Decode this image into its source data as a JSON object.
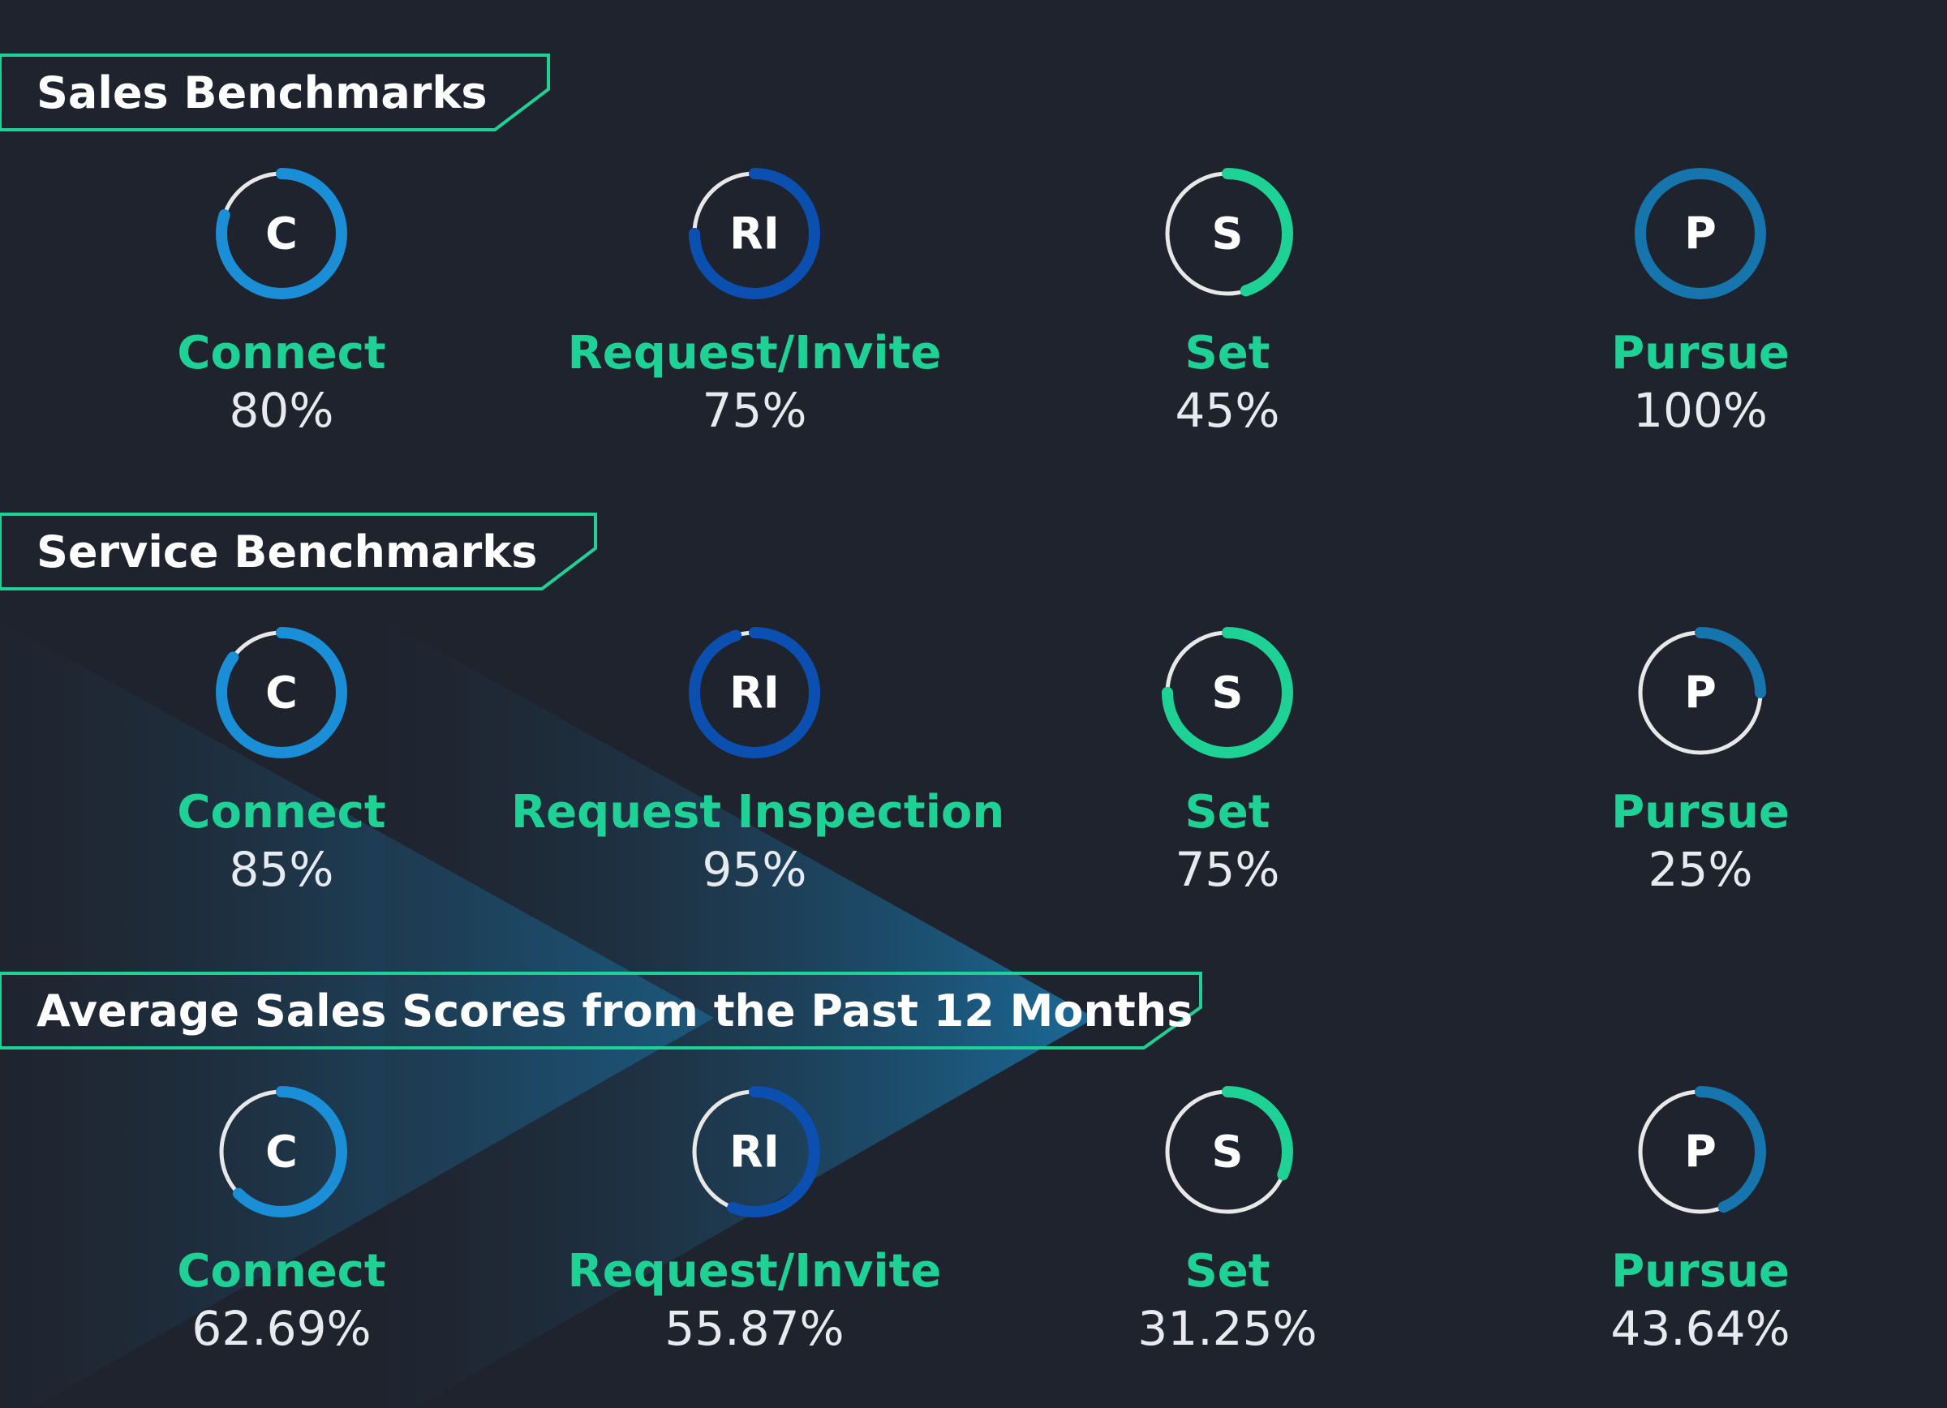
{
  "colors": {
    "background": "#1f232d",
    "header_border": "#1ed195",
    "label": "#1ed195",
    "value": "#e7eaef",
    "track": "#e8e8e8",
    "connect": "#1a8fd8",
    "request": "#0b4fb0",
    "set": "#1ed195",
    "pursue": "#1675ad"
  },
  "sections": [
    {
      "title": "Sales Benchmarks",
      "metrics": [
        {
          "letter": "C",
          "label": "Connect",
          "value": "80%",
          "fraction": 0.8,
          "color_key": "connect",
          "icon": "connect-ring-icon"
        },
        {
          "letter": "RI",
          "label": "Request/Invite",
          "value": "75%",
          "fraction": 0.75,
          "color_key": "request",
          "icon": "request-ring-icon"
        },
        {
          "letter": "S",
          "label": "Set",
          "value": "45%",
          "fraction": 0.45,
          "color_key": "set",
          "icon": "set-ring-icon"
        },
        {
          "letter": "P",
          "label": "Pursue",
          "value": "100%",
          "fraction": 1.0,
          "color_key": "pursue",
          "icon": "pursue-ring-icon"
        }
      ]
    },
    {
      "title": "Service Benchmarks",
      "metrics": [
        {
          "letter": "C",
          "label": "Connect",
          "value": "85%",
          "fraction": 0.85,
          "color_key": "connect",
          "icon": "connect-ring-icon"
        },
        {
          "letter": "RI",
          "label": "Request Inspection",
          "value": "95%",
          "fraction": 0.95,
          "color_key": "request",
          "icon": "request-ring-icon"
        },
        {
          "letter": "S",
          "label": "Set",
          "value": "75%",
          "fraction": 0.75,
          "color_key": "set",
          "icon": "set-ring-icon"
        },
        {
          "letter": "P",
          "label": "Pursue",
          "value": "25%",
          "fraction": 0.25,
          "color_key": "pursue",
          "icon": "pursue-ring-icon"
        }
      ]
    },
    {
      "title": "Average Sales Scores from the Past 12 Months",
      "metrics": [
        {
          "letter": "C",
          "label": "Connect",
          "value": "62.69%",
          "fraction": 0.6269,
          "color_key": "connect",
          "icon": "connect-ring-icon"
        },
        {
          "letter": "RI",
          "label": "Request/Invite",
          "value": "55.87%",
          "fraction": 0.5587,
          "color_key": "request",
          "icon": "request-ring-icon"
        },
        {
          "letter": "S",
          "label": "Set",
          "value": "31.25%",
          "fraction": 0.3125,
          "color_key": "set",
          "icon": "set-ring-icon"
        },
        {
          "letter": "P",
          "label": "Pursue",
          "value": "43.64%",
          "fraction": 0.4364,
          "color_key": "pursue",
          "icon": "pursue-ring-icon"
        }
      ]
    }
  ]
}
